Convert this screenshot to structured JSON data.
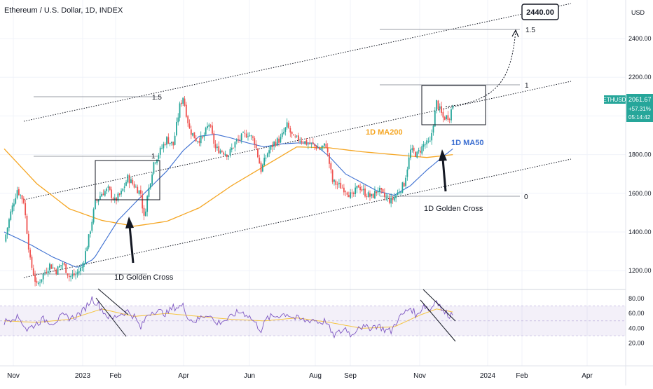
{
  "header": {
    "title": "Ethereum / U.S. Dollar, 1D, INDEX"
  },
  "chart_data": {
    "type": "candlestick",
    "symbol": "ETHUSD",
    "currency_label": "USD",
    "last_price": "2061.67",
    "change_pct": "+57.31%",
    "countdown": "05:14:42",
    "target_label": "2440.00",
    "price_axis": {
      "ticks": [
        "2400.00",
        "2200.00",
        "2000.00",
        "1800.00",
        "1600.00",
        "1400.00",
        "1200.00"
      ],
      "ylim": [
        1020,
        2640
      ]
    },
    "time_axis": [
      "Nov",
      "2023",
      "Feb",
      "Apr",
      "Jun",
      "Aug",
      "Sep",
      "Nov",
      "2024",
      "Feb",
      "Apr"
    ],
    "ma_labels": {
      "ma200": "1D MA200",
      "ma50": "1D MA50"
    },
    "ma_colors": {
      "ma200": "#f5a623",
      "ma50": "#3b6ed1",
      "up": "#26a69a",
      "down": "#ef5350",
      "rsi": "#7e57c2",
      "rsi_ma": "#f5c542"
    },
    "annotations": {
      "golden_cross_1": "1D Golden Cross",
      "golden_cross_2": "1D Golden Cross",
      "fib_left_1_5": "1.5",
      "fib_left_1": "1",
      "fib_right_1_5": "1.5",
      "fib_right_1": "1",
      "fib_right_0": "0"
    },
    "rsi_axis": {
      "ticks": [
        "80.00",
        "60.00",
        "40.00",
        "20.00"
      ],
      "ylim": [
        15,
        88
      ]
    },
    "price_anchors": [
      [
        0,
        1350
      ],
      [
        4,
        1500
      ],
      [
        8,
        1620
      ],
      [
        12,
        1560
      ],
      [
        16,
        1250
      ],
      [
        20,
        1120
      ],
      [
        24,
        1180
      ],
      [
        28,
        1230
      ],
      [
        32,
        1200
      ],
      [
        36,
        1240
      ],
      [
        40,
        1170
      ],
      [
        44,
        1180
      ],
      [
        48,
        1220
      ],
      [
        52,
        1370
      ],
      [
        56,
        1550
      ],
      [
        60,
        1600
      ],
      [
        64,
        1620
      ],
      [
        68,
        1560
      ],
      [
        72,
        1600
      ],
      [
        76,
        1680
      ],
      [
        80,
        1640
      ],
      [
        84,
        1600
      ],
      [
        86,
        1470
      ],
      [
        88,
        1580
      ],
      [
        92,
        1760
      ],
      [
        96,
        1820
      ],
      [
        100,
        1880
      ],
      [
        104,
        1850
      ],
      [
        108,
        2050
      ],
      [
        110,
        2100
      ],
      [
        114,
        1930
      ],
      [
        118,
        1880
      ],
      [
        122,
        1880
      ],
      [
        126,
        1960
      ],
      [
        130,
        1830
      ],
      [
        134,
        1820
      ],
      [
        138,
        1800
      ],
      [
        142,
        1860
      ],
      [
        146,
        1890
      ],
      [
        150,
        1910
      ],
      [
        154,
        1870
      ],
      [
        158,
        1720
      ],
      [
        162,
        1810
      ],
      [
        166,
        1860
      ],
      [
        170,
        1880
      ],
      [
        174,
        1950
      ],
      [
        178,
        1880
      ],
      [
        182,
        1880
      ],
      [
        186,
        1860
      ],
      [
        190,
        1850
      ],
      [
        194,
        1830
      ],
      [
        198,
        1850
      ],
      [
        202,
        1660
      ],
      [
        206,
        1640
      ],
      [
        210,
        1620
      ],
      [
        214,
        1580
      ],
      [
        218,
        1640
      ],
      [
        222,
        1600
      ],
      [
        226,
        1580
      ],
      [
        230,
        1620
      ],
      [
        234,
        1580
      ],
      [
        238,
        1560
      ],
      [
        242,
        1600
      ],
      [
        246,
        1650
      ],
      [
        250,
        1820
      ],
      [
        254,
        1800
      ],
      [
        258,
        1850
      ],
      [
        262,
        1860
      ],
      [
        266,
        2070
      ],
      [
        270,
        1990
      ],
      [
        274,
        2000
      ],
      [
        276,
        2060
      ]
    ],
    "ma200_anchors": [
      [
        0,
        1830
      ],
      [
        20,
        1650
      ],
      [
        40,
        1520
      ],
      [
        60,
        1460
      ],
      [
        80,
        1430
      ],
      [
        100,
        1455
      ],
      [
        120,
        1525
      ],
      [
        140,
        1640
      ],
      [
        160,
        1740
      ],
      [
        180,
        1840
      ],
      [
        200,
        1835
      ],
      [
        220,
        1815
      ],
      [
        240,
        1800
      ],
      [
        260,
        1785
      ],
      [
        276,
        1800
      ]
    ],
    "ma50_anchors": [
      [
        0,
        1400
      ],
      [
        15,
        1340
      ],
      [
        30,
        1270
      ],
      [
        45,
        1215
      ],
      [
        55,
        1260
      ],
      [
        70,
        1460
      ],
      [
        85,
        1590
      ],
      [
        100,
        1715
      ],
      [
        110,
        1820
      ],
      [
        120,
        1895
      ],
      [
        130,
        1905
      ],
      [
        140,
        1885
      ],
      [
        150,
        1860
      ],
      [
        160,
        1840
      ],
      [
        170,
        1855
      ],
      [
        180,
        1860
      ],
      [
        190,
        1860
      ],
      [
        200,
        1790
      ],
      [
        210,
        1700
      ],
      [
        220,
        1655
      ],
      [
        230,
        1610
      ],
      [
        240,
        1590
      ],
      [
        250,
        1640
      ],
      [
        260,
        1720
      ],
      [
        270,
        1790
      ],
      [
        276,
        1830
      ]
    ],
    "rsi_anchors": [
      [
        0,
        48
      ],
      [
        6,
        56
      ],
      [
        10,
        52
      ],
      [
        14,
        38
      ],
      [
        18,
        44
      ],
      [
        24,
        52
      ],
      [
        30,
        48
      ],
      [
        36,
        56
      ],
      [
        42,
        54
      ],
      [
        48,
        62
      ],
      [
        54,
        80
      ],
      [
        58,
        72
      ],
      [
        62,
        60
      ],
      [
        66,
        52
      ],
      [
        70,
        58
      ],
      [
        76,
        63
      ],
      [
        80,
        56
      ],
      [
        84,
        40
      ],
      [
        88,
        58
      ],
      [
        92,
        64
      ],
      [
        96,
        62
      ],
      [
        100,
        60
      ],
      [
        104,
        68
      ],
      [
        110,
        70
      ],
      [
        114,
        52
      ],
      [
        118,
        50
      ],
      [
        122,
        56
      ],
      [
        126,
        60
      ],
      [
        130,
        46
      ],
      [
        134,
        50
      ],
      [
        138,
        52
      ],
      [
        142,
        60
      ],
      [
        146,
        62
      ],
      [
        150,
        58
      ],
      [
        154,
        48
      ],
      [
        158,
        38
      ],
      [
        162,
        54
      ],
      [
        166,
        56
      ],
      [
        170,
        58
      ],
      [
        174,
        60
      ],
      [
        178,
        54
      ],
      [
        182,
        52
      ],
      [
        186,
        50
      ],
      [
        190,
        52
      ],
      [
        194,
        48
      ],
      [
        198,
        50
      ],
      [
        202,
        30
      ],
      [
        206,
        34
      ],
      [
        210,
        40
      ],
      [
        214,
        30
      ],
      [
        218,
        44
      ],
      [
        222,
        40
      ],
      [
        226,
        42
      ],
      [
        230,
        44
      ],
      [
        234,
        38
      ],
      [
        238,
        36
      ],
      [
        242,
        52
      ],
      [
        246,
        60
      ],
      [
        250,
        68
      ],
      [
        254,
        56
      ],
      [
        258,
        72
      ],
      [
        262,
        64
      ],
      [
        266,
        80
      ],
      [
        270,
        62
      ],
      [
        274,
        58
      ],
      [
        276,
        60
      ]
    ],
    "rsi_ma_anchors": [
      [
        0,
        50
      ],
      [
        20,
        48
      ],
      [
        40,
        52
      ],
      [
        60,
        66
      ],
      [
        80,
        56
      ],
      [
        100,
        60
      ],
      [
        120,
        56
      ],
      [
        140,
        52
      ],
      [
        160,
        50
      ],
      [
        180,
        54
      ],
      [
        200,
        48
      ],
      [
        220,
        40
      ],
      [
        240,
        42
      ],
      [
        256,
        58
      ],
      [
        266,
        66
      ],
      [
        276,
        62
      ]
    ]
  }
}
